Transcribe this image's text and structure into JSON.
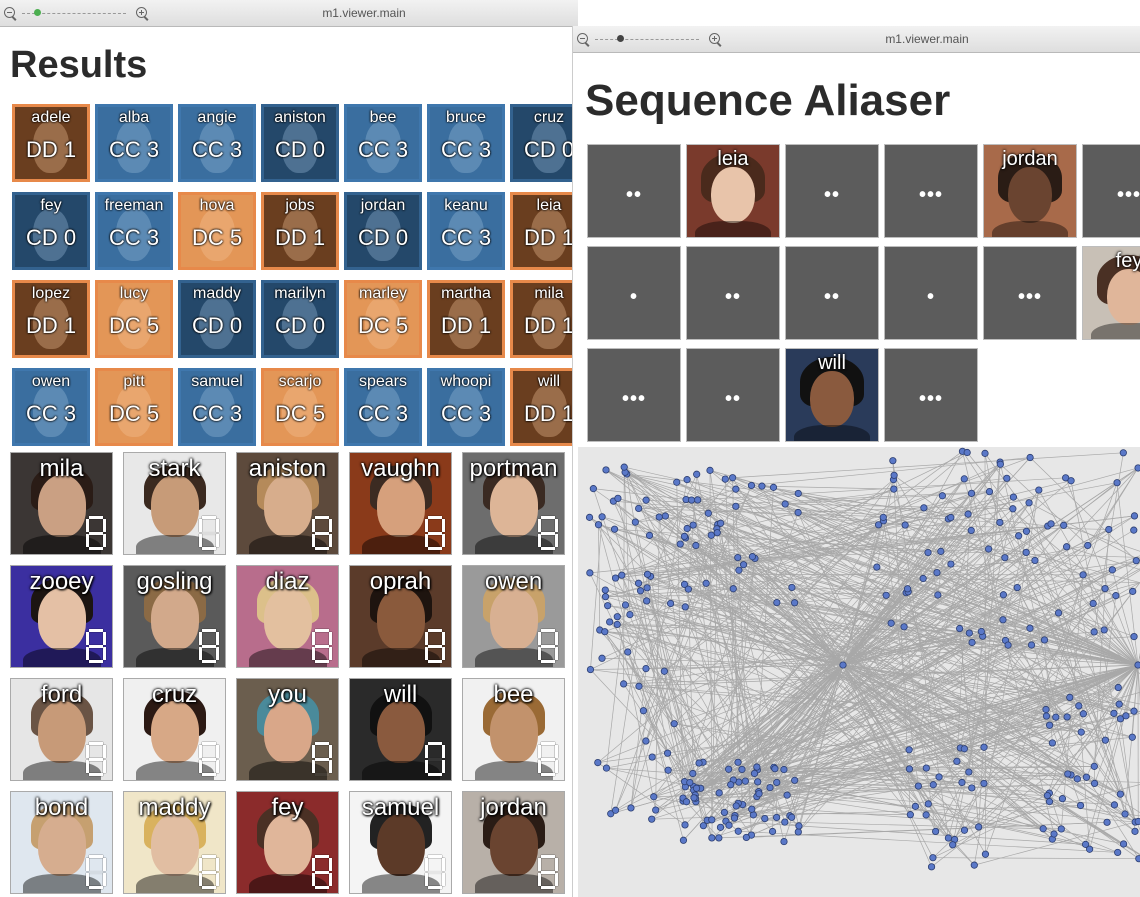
{
  "left_window": {
    "titlebar": {
      "title": "m1.viewer.main",
      "zoom_level": 0.1
    },
    "heading": "Results",
    "tiles": [
      {
        "name": "adele",
        "label": "DD 1",
        "kind": "dd"
      },
      {
        "name": "alba",
        "label": "CC 3",
        "kind": "cc"
      },
      {
        "name": "angie",
        "label": "CC 3",
        "kind": "cc"
      },
      {
        "name": "aniston",
        "label": "CD 0",
        "kind": "cd"
      },
      {
        "name": "bee",
        "label": "CC 3",
        "kind": "cc"
      },
      {
        "name": "bruce",
        "label": "CC 3",
        "kind": "cc"
      },
      {
        "name": "cruz",
        "label": "CD 0",
        "kind": "cd"
      },
      {
        "name": "fey",
        "label": "CD 0",
        "kind": "cd"
      },
      {
        "name": "freeman",
        "label": "CC 3",
        "kind": "cc"
      },
      {
        "name": "hova",
        "label": "DC 5",
        "kind": "dc"
      },
      {
        "name": "jobs",
        "label": "DD 1",
        "kind": "dd"
      },
      {
        "name": "jordan",
        "label": "CD 0",
        "kind": "cd"
      },
      {
        "name": "keanu",
        "label": "CC 3",
        "kind": "cc"
      },
      {
        "name": "leia",
        "label": "DD 1",
        "kind": "dd"
      },
      {
        "name": "lopez",
        "label": "DD 1",
        "kind": "dd"
      },
      {
        "name": "lucy",
        "label": "DC 5",
        "kind": "dc"
      },
      {
        "name": "maddy",
        "label": "CD 0",
        "kind": "cd"
      },
      {
        "name": "marilyn",
        "label": "CD 0",
        "kind": "cd"
      },
      {
        "name": "marley",
        "label": "DC 5",
        "kind": "dc"
      },
      {
        "name": "martha",
        "label": "DD 1",
        "kind": "dd"
      },
      {
        "name": "mila",
        "label": "DD 1",
        "kind": "dd"
      },
      {
        "name": "owen",
        "label": "CC 3",
        "kind": "cc"
      },
      {
        "name": "pitt",
        "label": "DC 5",
        "kind": "dc"
      },
      {
        "name": "samuel",
        "label": "CC 3",
        "kind": "cc"
      },
      {
        "name": "scarjo",
        "label": "DC 5",
        "kind": "dc"
      },
      {
        "name": "spears",
        "label": "CC 3",
        "kind": "cc"
      },
      {
        "name": "whoopi",
        "label": "CC 3",
        "kind": "cc"
      },
      {
        "name": "will",
        "label": "DD 1",
        "kind": "dd"
      }
    ],
    "photos": [
      {
        "name": "mila",
        "digit": "8",
        "bg": "#3b3634",
        "skin": "#caa083",
        "hair": "#2a1c16"
      },
      {
        "name": "stark",
        "digit": "0",
        "bg": "#e8e8e8",
        "skin": "#c79b78",
        "hair": "#3b2a20"
      },
      {
        "name": "aniston",
        "digit": "8",
        "bg": "#5d4a3c",
        "skin": "#d7ad8c",
        "hair": "#b58a5a"
      },
      {
        "name": "vaughn",
        "digit": "8",
        "bg": "#8a3a1a",
        "skin": "#d6a07c",
        "hair": "#3c2b22"
      },
      {
        "name": "portman",
        "digit": "8",
        "bg": "#6d6d6d",
        "skin": "#ddb597",
        "hair": "#3a2a22"
      },
      {
        "name": "zooey",
        "digit": "8",
        "bg": "#3b2fa0",
        "skin": "#e4c0a5",
        "hair": "#1c1512"
      },
      {
        "name": "gosling",
        "digit": "8",
        "bg": "#5a5a5a",
        "skin": "#d2a98b",
        "hair": "#8b6a45"
      },
      {
        "name": "diaz",
        "digit": "8",
        "bg": "#b86d8c",
        "skin": "#e3c09f",
        "hair": "#dcc08a"
      },
      {
        "name": "oprah",
        "digit": "8",
        "bg": "#5b3b2a",
        "skin": "#8a5a3c",
        "hair": "#1e140f"
      },
      {
        "name": "owen",
        "digit": "8",
        "bg": "#9a9a9a",
        "skin": "#d8b092",
        "hair": "#c8a26a"
      },
      {
        "name": "ford",
        "digit": "8",
        "bg": "#e6e6e6",
        "skin": "#c79a78",
        "hair": "#6a5445"
      },
      {
        "name": "cruz",
        "digit": "8",
        "bg": "#f0f0f0",
        "skin": "#d7a886",
        "hair": "#2c1a14"
      },
      {
        "name": "you",
        "digit": "A",
        "bg": "#6b5e4e",
        "skin": "#d9a789",
        "hair": "#4a8a9a"
      },
      {
        "name": "will",
        "digit": "0",
        "bg": "#2a2a2a",
        "skin": "#8a5a3e",
        "hair": "#111"
      },
      {
        "name": "bee",
        "digit": "8",
        "bg": "#f1f1f1",
        "skin": "#c2926c",
        "hair": "#9a6a35"
      },
      {
        "name": "bond",
        "digit": "0",
        "bg": "#dfe7ef",
        "skin": "#d6ad8f",
        "hair": "#c6a070"
      },
      {
        "name": "maddy",
        "digit": "8",
        "bg": "#f0e6c8",
        "skin": "#e1bea2",
        "hair": "#d9b25e"
      },
      {
        "name": "fey",
        "digit": "8",
        "bg": "#8b2b2b",
        "skin": "#e0b69a",
        "hair": "#4a3024"
      },
      {
        "name": "samuel",
        "digit": "0",
        "bg": "#f4f4f4",
        "skin": "#5c3a28",
        "hair": "#222"
      },
      {
        "name": "jordan",
        "digit": "8",
        "bg": "#b8b0a8",
        "skin": "#6a4430",
        "hair": "#2a1c15"
      }
    ]
  },
  "right_window": {
    "titlebar": {
      "title": "m1.viewer.main",
      "zoom_level": 0.25
    },
    "heading": "Sequence Aliaser",
    "sequence": [
      {
        "kind": "dots",
        "dots": "••"
      },
      {
        "kind": "face",
        "name": "leia",
        "bg": "#7a3a2c",
        "skin": "#e8c4aa",
        "hair": "#4a2a1c"
      },
      {
        "kind": "dots",
        "dots": "••"
      },
      {
        "kind": "dots",
        "dots": "•••"
      },
      {
        "kind": "face",
        "name": "jordan",
        "bg": "#a86a4a",
        "skin": "#6a4430",
        "hair": "#2a1c15"
      },
      {
        "kind": "dots",
        "dots": "•••"
      },
      {
        "kind": "dots",
        "dots": "•"
      },
      {
        "kind": "dots",
        "dots": "••"
      },
      {
        "kind": "dots",
        "dots": "••"
      },
      {
        "kind": "dots",
        "dots": "•"
      },
      {
        "kind": "dots",
        "dots": "•••"
      },
      {
        "kind": "face",
        "name": "fey",
        "bg": "#c8c0b6",
        "skin": "#e0b69a",
        "hair": "#4a3024"
      },
      {
        "kind": "dots",
        "dots": "•••"
      },
      {
        "kind": "dots",
        "dots": "••"
      },
      {
        "kind": "face",
        "name": "will",
        "bg": "#2a3b5a",
        "skin": "#8a5a3e",
        "hair": "#111"
      },
      {
        "kind": "dots",
        "dots": "•••"
      }
    ]
  },
  "colors": {
    "cc": "#3f77ad",
    "dc": "#e7894a",
    "graph_bg": "#e7e7e7",
    "node": "#5a78c8",
    "edge": "#a8a8a8"
  }
}
